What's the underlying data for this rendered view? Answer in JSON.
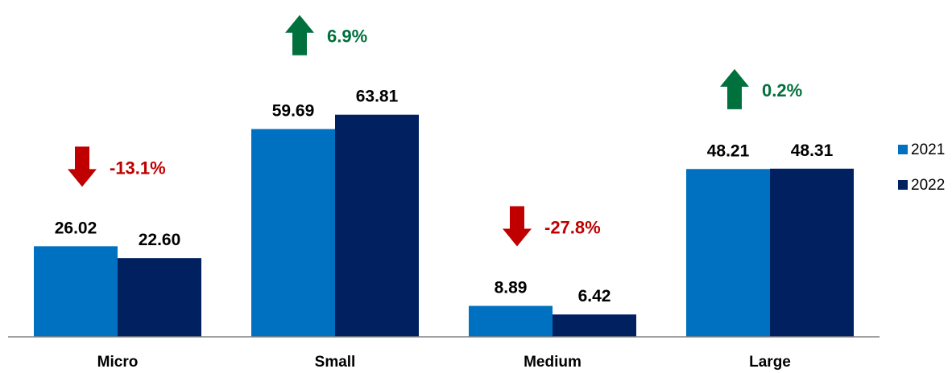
{
  "colors": {
    "series_2021": "#0070C0",
    "series_2022": "#002060",
    "up": "#00703C",
    "down": "#C00000",
    "axis": "#808080"
  },
  "chart_data": {
    "type": "bar",
    "categories": [
      "Micro",
      "Small",
      "Medium",
      "Large"
    ],
    "series": [
      {
        "name": "2021",
        "values": [
          26.02,
          59.69,
          8.89,
          48.21
        ],
        "labels": [
          "26.02",
          "59.69",
          "8.89",
          "48.21"
        ]
      },
      {
        "name": "2022",
        "values": [
          22.6,
          63.81,
          6.42,
          48.31
        ],
        "labels": [
          "22.60",
          "63.81",
          "6.42",
          "48.31"
        ]
      }
    ],
    "changes": [
      {
        "label": "-13.1%",
        "direction": "down"
      },
      {
        "label": "6.9%",
        "direction": "up"
      },
      {
        "label": "-27.8%",
        "direction": "down"
      },
      {
        "label": "0.2%",
        "direction": "up"
      }
    ],
    "ylim": [
      0,
      70
    ],
    "grid": false,
    "legend_position": "right"
  }
}
